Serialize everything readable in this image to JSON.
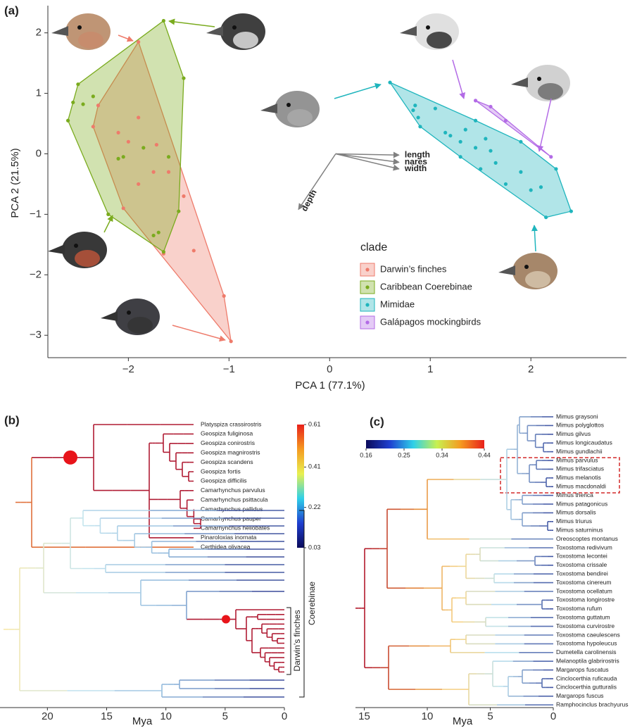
{
  "chart_data": [
    {
      "type": "scatter",
      "panel_label": "(a)",
      "xlabel": "PCA 1 (77.1%)",
      "ylabel": "PCA 2 (21.5%)",
      "xlim": [
        -2.8,
        2.95
      ],
      "ylim": [
        -3.37,
        2.45
      ],
      "xticks": [
        {
          "value": -2,
          "label": "−2"
        },
        {
          "value": -1,
          "label": "−1"
        },
        0,
        1,
        2
      ],
      "yticks": [
        2,
        1,
        0,
        {
          "value": -1,
          "label": "−1"
        },
        {
          "value": -2,
          "label": "−2"
        },
        {
          "value": -3,
          "label": "−3"
        }
      ],
      "legend_title": "clade",
      "series": [
        {
          "name": "Darwin’s finches",
          "color": "#ee7b6b",
          "x": [
            -1.9,
            -2.35,
            -2.05,
            -1.65,
            -0.98,
            -2.1,
            -2.0,
            -1.9,
            -1.72,
            -1.9,
            -1.6,
            -1.45,
            -1.35,
            -1.05,
            -2.3,
            -1.75
          ],
          "y": [
            1.85,
            0.45,
            -0.9,
            -1.65,
            -3.1,
            0.35,
            0.2,
            0.6,
            0.15,
            -0.5,
            -0.3,
            -0.7,
            -1.6,
            -2.35,
            0.8,
            -0.3
          ]
        },
        {
          "name": "Caribbean Coerebinae",
          "color": "#7aab1e",
          "x": [
            -1.65,
            -2.5,
            -2.55,
            -2.45,
            -2.6,
            -2.2,
            -1.65,
            -1.45,
            -1.5,
            -2.1,
            -2.05,
            -1.85,
            -1.75,
            -1.7,
            -1.6,
            -2.35
          ],
          "y": [
            2.2,
            1.15,
            0.85,
            0.82,
            0.55,
            -1.0,
            -1.62,
            1.25,
            -0.95,
            -0.08,
            -0.05,
            0.1,
            -1.35,
            -1.3,
            -0.05,
            0.95
          ]
        },
        {
          "name": "Mimidae",
          "color": "#1fb5bd",
          "x": [
            0.6,
            0.85,
            0.83,
            0.88,
            1.05,
            1.15,
            1.2,
            1.3,
            1.35,
            1.45,
            1.55,
            1.45,
            1.3,
            1.6,
            1.5,
            1.65,
            1.9,
            1.75,
            2.0,
            2.1,
            2.25,
            2.15,
            2.4,
            1.9,
            0.9
          ],
          "y": [
            1.18,
            0.8,
            0.72,
            0.6,
            0.75,
            0.35,
            0.3,
            0.2,
            0.4,
            0.55,
            0.25,
            0.1,
            -0.05,
            0.05,
            -0.25,
            -0.15,
            -0.3,
            -0.5,
            -0.6,
            -0.55,
            -0.25,
            -1.05,
            -0.95,
            0.2,
            0.45
          ]
        },
        {
          "name": "Galápagos mockingbirds",
          "color": "#b36be6",
          "x": [
            1.45,
            1.6,
            2.2,
            1.75
          ],
          "y": [
            0.88,
            0.78,
            -0.05,
            0.55
          ]
        }
      ],
      "loadings": {
        "labels": [
          "length",
          "nares",
          "width",
          "depth"
        ],
        "color": "#808080",
        "x0": 0.06,
        "y0": 0.0,
        "x": [
          0.69,
          0.69,
          0.69,
          -0.31
        ],
        "y": [
          -0.02,
          -0.14,
          -0.25,
          -0.92
        ]
      }
    },
    {
      "type": "tree",
      "panel_label": "(b)",
      "xlabel": "Mya",
      "xlim": [
        24,
        0
      ],
      "xticks": [
        20,
        15,
        10,
        5,
        0
      ],
      "tips": [
        "Platyspiza crassirostris",
        "Geospiza fuliginosa",
        "Geospiza conirostris",
        "Geospiza magnirostris",
        "Geospiza scandens",
        "Geospiza fortis",
        "Geospiza difficilis",
        "Camarhynchus parvulus",
        "Camarhynchus psittacula",
        "Camarhynchus pallidus",
        "Camarhynchus pauper",
        "Camarhynchus heliobates",
        "Pinaroloxias inornata",
        "Certhidea olivacea"
      ],
      "colorbar_lim": [
        0.03,
        0.61
      ],
      "colorbar_ticks": [
        0.61,
        0.41,
        0.22,
        0.03
      ],
      "clade_labels": [
        "Darwin’s finches",
        "Coerebinae"
      ]
    },
    {
      "type": "tree",
      "panel_label": "(c)",
      "xlabel": "Mya",
      "xlim": [
        15.7,
        0
      ],
      "xticks": [
        15,
        10,
        5,
        0
      ],
      "tips": [
        "Mimus graysoni",
        "Mimus polyglottos",
        "Mimus gilvus",
        "Mimus longicaudatus",
        "Mimus gundlachii",
        "Mimus parvulus",
        "Mimus trifasciatus",
        "Mimus melanotis",
        "Mimus macdonaldi",
        "Mimus thenca",
        "Mimus patagonicus",
        "Mimus dorsalis",
        "Mimus triurus",
        "Mimus saturninus",
        "Oreoscoptes montanus",
        "Toxostoma redivivum",
        "Toxostoma lecontei",
        "Toxostoma crissale",
        "Toxostoma bendirei",
        "Toxostoma cinereum",
        "Toxostoma ocellatum",
        "Toxostoma longirostre",
        "Toxostoma rufum",
        "Toxostoma guttatum",
        "Toxostoma curvirostre",
        "Toxostoma caeulescens",
        "Toxostoma hypoleucus",
        "Dumetella carolinensis",
        "Melanoptila glabrirostris",
        "Margarops fuscatus",
        "Cinclocerthia ruficauda",
        "Cinclocerthia gutturalis",
        "Margarops fuscus",
        "Ramphocinclus brachyurus"
      ],
      "colorbar_lim": [
        0.16,
        0.44
      ],
      "colorbar_ticks": [
        0.16,
        0.25,
        0.34,
        0.44
      ]
    }
  ]
}
